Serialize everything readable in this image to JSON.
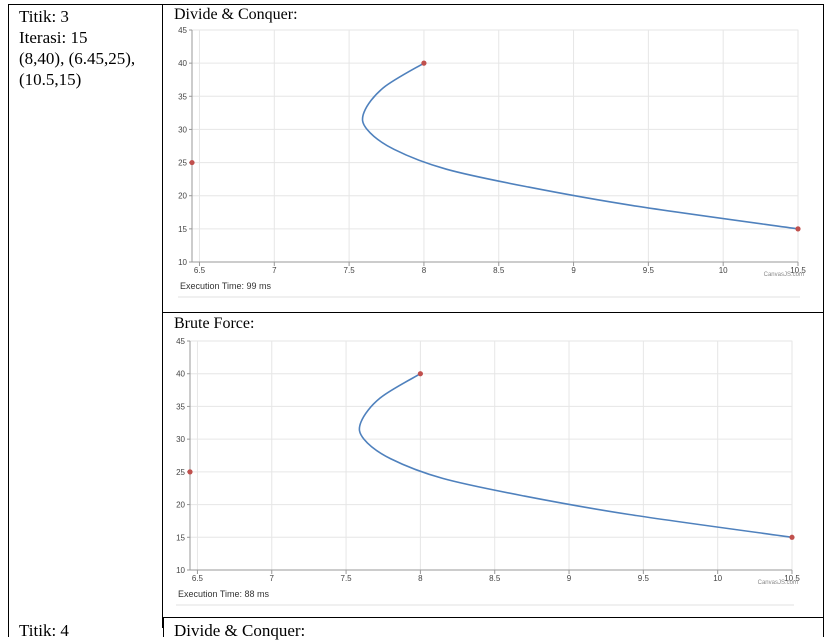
{
  "left": {
    "lines": [
      "Titik: 3",
      "Iterasi: 15",
      "(8,40), (6.45,25),",
      "(10.5,15)"
    ]
  },
  "next_row": {
    "left_cut": "Titik: 4",
    "right_cut": "Divide & Conquer:"
  },
  "charts": [
    {
      "heading": "Divide & Conquer:",
      "execution_time": "Execution Time: 99 ms",
      "credit": "CanvasJS.com"
    },
    {
      "heading": "Brute Force:",
      "execution_time": "Execution Time: 88 ms",
      "credit": "CanvasJS.com"
    }
  ],
  "colors": {
    "line": "#4f81bd",
    "point": "#c0504d",
    "grid": "#e6e6e6",
    "axis": "#999999"
  },
  "chart_data": [
    {
      "type": "line",
      "title": "Divide & Conquer:",
      "x_ticks": [
        "6.5",
        "7",
        "7.5",
        "8",
        "8.5",
        "9",
        "9.5",
        "10",
        "10.5"
      ],
      "y_ticks": [
        "10",
        "15",
        "20",
        "25",
        "30",
        "35",
        "40",
        "45"
      ],
      "xlim": [
        6.45,
        10.5
      ],
      "ylim": [
        10,
        45
      ],
      "grid": true,
      "control_points": [
        {
          "x": 8,
          "y": 40
        },
        {
          "x": 6.45,
          "y": 25
        },
        {
          "x": 10.5,
          "y": 15
        }
      ],
      "curve": {
        "x": [
          8,
          7.73,
          7.6,
          7.62,
          7.8,
          8.15,
          8.7,
          9.4,
          10.5
        ],
        "y": [
          40,
          36.3,
          32.6,
          30,
          27,
          24,
          21.3,
          18.5,
          15
        ]
      }
    },
    {
      "type": "line",
      "title": "Brute Force:",
      "x_ticks": [
        "6.5",
        "7",
        "7.5",
        "8",
        "8.5",
        "9",
        "9.5",
        "10",
        "10.5"
      ],
      "y_ticks": [
        "10",
        "15",
        "20",
        "25",
        "30",
        "35",
        "40",
        "45"
      ],
      "xlim": [
        6.45,
        10.5
      ],
      "ylim": [
        10,
        45
      ],
      "grid": true,
      "control_points": [
        {
          "x": 8,
          "y": 40
        },
        {
          "x": 6.45,
          "y": 25
        },
        {
          "x": 10.5,
          "y": 15
        }
      ],
      "curve": {
        "x": [
          8,
          7.73,
          7.6,
          7.62,
          7.8,
          8.15,
          8.7,
          9.4,
          10.5
        ],
        "y": [
          40,
          36.3,
          32.6,
          30,
          27,
          24,
          21.3,
          18.5,
          15
        ]
      }
    }
  ]
}
